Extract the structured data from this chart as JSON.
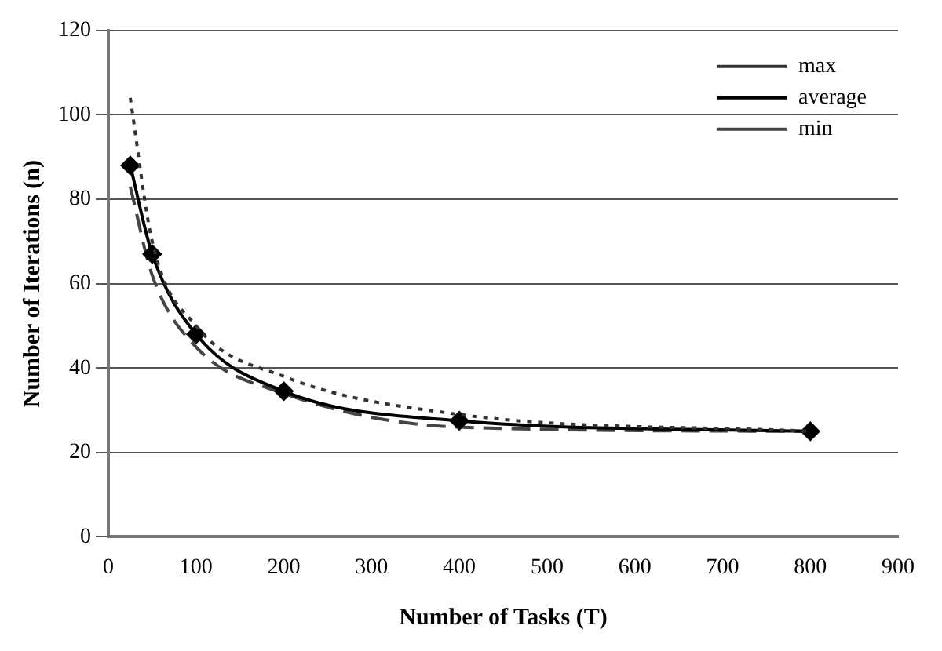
{
  "chart_data": {
    "type": "line",
    "xlabel": "Number of Tasks (T)",
    "ylabel": "Number of Iterations (n)",
    "x": [
      25,
      50,
      100,
      200,
      400,
      800
    ],
    "series": [
      {
        "name": "max",
        "color": "#333333",
        "values": [
          104,
          70,
          50,
          38,
          29,
          25
        ],
        "line_style": "dotted",
        "marker": "none"
      },
      {
        "name": "average",
        "color": "#000000",
        "values": [
          88,
          67,
          48,
          34.5,
          27.5,
          25
        ],
        "line_style": "solid",
        "marker": "diamond"
      },
      {
        "name": "min",
        "color": "#444444",
        "values": [
          83,
          62,
          45,
          34,
          26,
          25
        ],
        "line_style": "dashed",
        "marker": "none"
      }
    ],
    "xlim": [
      0,
      900
    ],
    "xticks": [
      0,
      100,
      200,
      300,
      400,
      500,
      600,
      700,
      800,
      900
    ],
    "ylim": [
      0,
      120
    ],
    "yticks": [
      0,
      20,
      40,
      60,
      80,
      100,
      120
    ],
    "grid": "y",
    "legend": "top right"
  }
}
